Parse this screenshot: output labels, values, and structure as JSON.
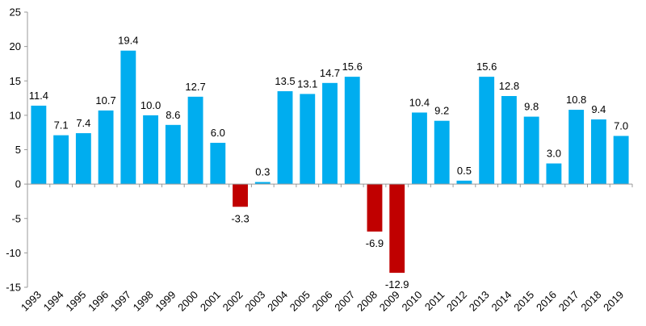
{
  "chart_data": {
    "type": "bar",
    "title": "",
    "xlabel": "",
    "ylabel": "",
    "ylim": [
      -15,
      25
    ],
    "yticks": [
      -15,
      -10,
      -5,
      0,
      5,
      10,
      15,
      20,
      25
    ],
    "grid": false,
    "legend": "none",
    "colors": {
      "positive": "#00ADEF",
      "negative": "#C00000"
    },
    "categories": [
      "1993",
      "1994",
      "1995",
      "1996",
      "1997",
      "1998",
      "1999",
      "2000",
      "2001",
      "2002",
      "2003",
      "2004",
      "2005",
      "2006",
      "2007",
      "2008",
      "2009",
      "2010",
      "2011",
      "2012",
      "2013",
      "2014",
      "2015",
      "2016",
      "2017",
      "2018",
      "2019"
    ],
    "values": [
      11.4,
      7.1,
      7.4,
      10.7,
      19.4,
      10.0,
      8.6,
      12.7,
      6.0,
      -3.3,
      0.3,
      13.5,
      13.1,
      14.7,
      15.6,
      -6.9,
      -12.9,
      10.4,
      9.2,
      0.5,
      15.6,
      12.8,
      9.8,
      3.0,
      10.8,
      9.4,
      7.0
    ],
    "labels": [
      "11.4",
      "7.1",
      "7.4",
      "10.7",
      "19.4",
      "10.0",
      "8.6",
      "12.7",
      "6.0",
      "-3.3",
      "0.3",
      "13.5",
      "13.1",
      "14.7",
      "15.6",
      "-6.9",
      "-12.9",
      "10.4",
      "9.2",
      "0.5",
      "15.6",
      "12.8",
      "9.8",
      "3.0",
      "10.8",
      "9.4",
      "7.0"
    ]
  }
}
